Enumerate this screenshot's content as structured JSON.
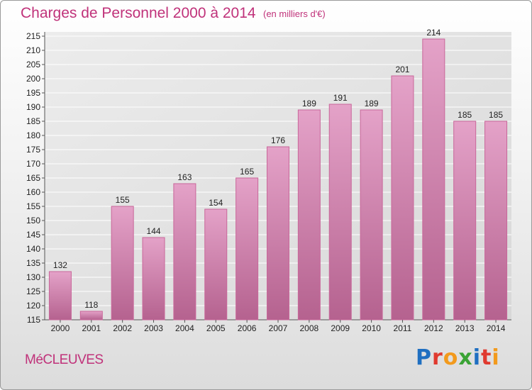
{
  "header": {
    "title": "Charges de Personnel 2000 à 2014",
    "subtitle": "(en milliers d'€)"
  },
  "footer": {
    "commune": "MéCLEUVES",
    "logo_letters": [
      "P",
      "r",
      "o",
      "x",
      "i",
      "t",
      "i"
    ],
    "logo_colors": [
      "#1f6fc1",
      "#e03a2f",
      "#f29a1d",
      "#3aa335",
      "#1f6fc1",
      "#e03a2f",
      "#f29a1d"
    ]
  },
  "chart_data": {
    "type": "bar",
    "categories": [
      "2000",
      "2001",
      "2002",
      "2003",
      "2004",
      "2005",
      "2006",
      "2007",
      "2008",
      "2009",
      "2010",
      "2011",
      "2012",
      "2013",
      "2014"
    ],
    "values": [
      132,
      118,
      155,
      144,
      163,
      154,
      165,
      176,
      189,
      191,
      189,
      201,
      214,
      185,
      185
    ],
    "data_labels": [
      "132",
      "118",
      "155",
      "144",
      "163",
      "154",
      "165",
      "176",
      "189",
      "191",
      "189",
      "201",
      "214",
      "185",
      "185"
    ],
    "y_ticks": [
      115,
      120,
      125,
      130,
      135,
      140,
      145,
      150,
      155,
      160,
      165,
      170,
      175,
      180,
      185,
      190,
      195,
      200,
      205,
      210,
      215
    ],
    "ylim": [
      115,
      215
    ],
    "grid": true,
    "bar_color": "#e4a2c8",
    "bar_color_dark": "#b5628f"
  }
}
